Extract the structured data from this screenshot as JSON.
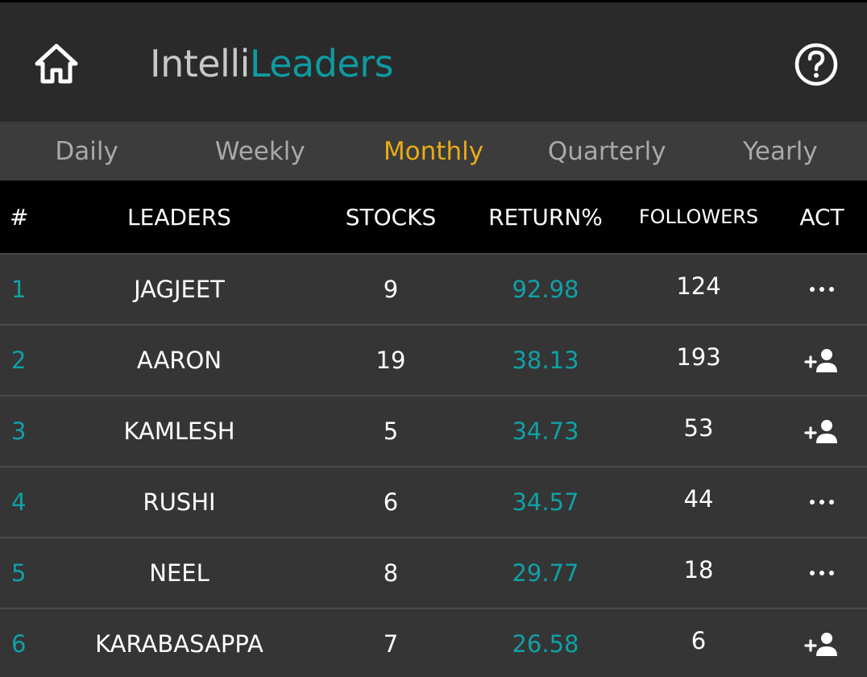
{
  "header": {
    "brand_part1": "Intelli",
    "brand_part2": "Leaders",
    "home_icon": "home-icon",
    "help_icon": "help-circle-icon"
  },
  "tabs": [
    {
      "label": "Daily",
      "active": false
    },
    {
      "label": "Weekly",
      "active": false
    },
    {
      "label": "Monthly",
      "active": true
    },
    {
      "label": "Quarterly",
      "active": false
    },
    {
      "label": "Yearly",
      "active": false
    }
  ],
  "table": {
    "columns": [
      "#",
      "LEADERS",
      "STOCKS",
      "RETURN%",
      "FOLLOWERS",
      "ACT"
    ],
    "rows": [
      {
        "rank": "1",
        "leader": "JAGJEET",
        "stocks": "9",
        "return": "92.98",
        "followers": "124",
        "action": "more-options-icon"
      },
      {
        "rank": "2",
        "leader": "AARON",
        "stocks": "19",
        "return": "38.13",
        "followers": "193",
        "action": "add-follow-icon"
      },
      {
        "rank": "3",
        "leader": "KAMLESH",
        "stocks": "5",
        "return": "34.73",
        "followers": "53",
        "action": "add-follow-icon"
      },
      {
        "rank": "4",
        "leader": "RUSHI",
        "stocks": "6",
        "return": "34.57",
        "followers": "44",
        "action": "more-options-icon"
      },
      {
        "rank": "5",
        "leader": "NEEL",
        "stocks": "8",
        "return": "29.77",
        "followers": "18",
        "action": "more-options-icon"
      },
      {
        "rank": "6",
        "leader": "KARABASAPPA",
        "stocks": "7",
        "return": "26.58",
        "followers": "6",
        "action": "add-follow-icon"
      }
    ]
  },
  "colors": {
    "accent_teal": "#0e9aa0",
    "active_tab": "#e8ab18",
    "header_bg": "#2a2a2a",
    "row_bg": "#353535"
  }
}
